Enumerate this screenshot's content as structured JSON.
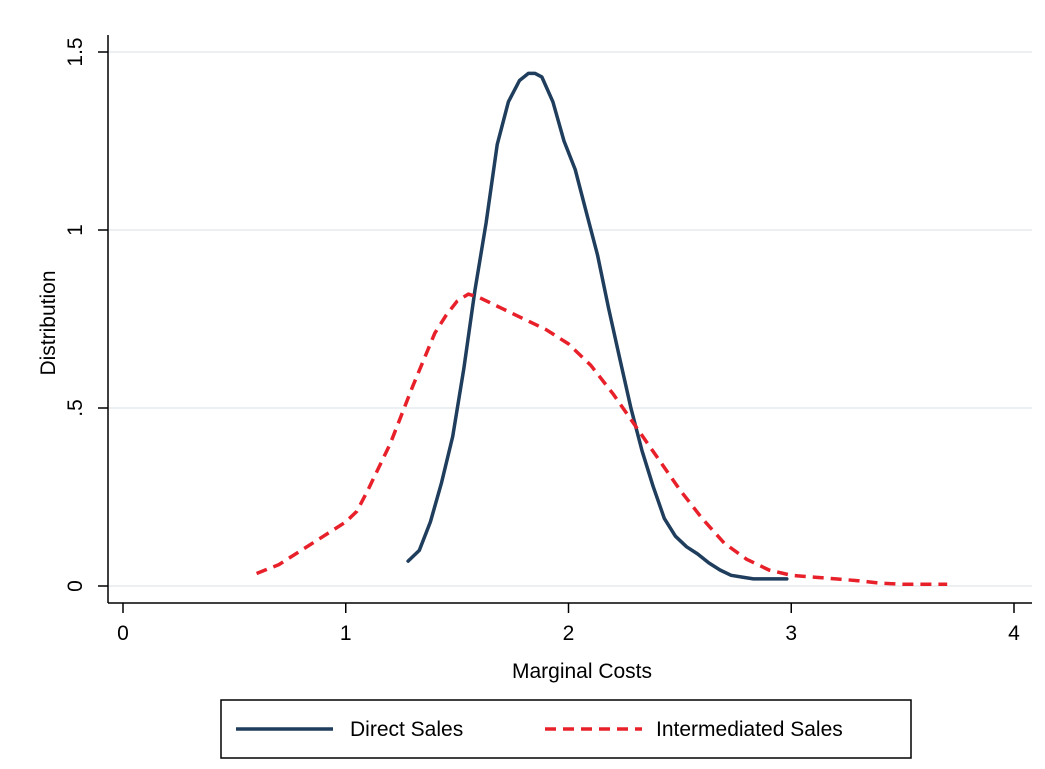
{
  "chart_data": {
    "type": "line",
    "xlabel": "Marginal Costs",
    "ylabel": "Distribution",
    "xlim": [
      0,
      4
    ],
    "ylim": [
      0,
      1.5
    ],
    "xticks": [
      0,
      1,
      2,
      3,
      4
    ],
    "xtick_labels": [
      "0",
      "1",
      "2",
      "3",
      "4"
    ],
    "yticks": [
      0,
      0.5,
      1,
      1.5
    ],
    "ytick_labels": [
      "0",
      ".5",
      "1",
      "1.5"
    ],
    "grid": "horizontal",
    "legend_position": "bottom",
    "series": [
      {
        "name": "Direct Sales",
        "color": "#1f3d5c",
        "style": "solid",
        "x": [
          1.28,
          1.33,
          1.38,
          1.43,
          1.48,
          1.53,
          1.58,
          1.63,
          1.68,
          1.73,
          1.78,
          1.82,
          1.85,
          1.88,
          1.93,
          1.98,
          2.03,
          2.08,
          2.13,
          2.18,
          2.23,
          2.28,
          2.33,
          2.38,
          2.43,
          2.48,
          2.53,
          2.58,
          2.63,
          2.68,
          2.73,
          2.78,
          2.83,
          2.88,
          2.93,
          2.98
        ],
        "y": [
          0.07,
          0.1,
          0.18,
          0.29,
          0.42,
          0.61,
          0.83,
          1.02,
          1.24,
          1.36,
          1.42,
          1.44,
          1.44,
          1.43,
          1.36,
          1.25,
          1.17,
          1.05,
          0.93,
          0.78,
          0.64,
          0.5,
          0.38,
          0.28,
          0.19,
          0.14,
          0.11,
          0.09,
          0.065,
          0.045,
          0.03,
          0.025,
          0.02,
          0.02,
          0.02,
          0.02
        ]
      },
      {
        "name": "Intermediated Sales",
        "color": "#e8202a",
        "style": "dashed",
        "x": [
          0.6,
          0.7,
          0.8,
          0.9,
          1.0,
          1.05,
          1.1,
          1.2,
          1.3,
          1.4,
          1.45,
          1.5,
          1.55,
          1.6,
          1.7,
          1.8,
          1.9,
          2.0,
          2.1,
          2.2,
          2.3,
          2.4,
          2.5,
          2.6,
          2.7,
          2.8,
          2.9,
          3.0,
          3.1,
          3.2,
          3.3,
          3.4,
          3.5,
          3.6,
          3.7
        ],
        "y": [
          0.035,
          0.06,
          0.1,
          0.14,
          0.18,
          0.21,
          0.27,
          0.4,
          0.56,
          0.71,
          0.76,
          0.8,
          0.82,
          0.81,
          0.78,
          0.75,
          0.72,
          0.68,
          0.62,
          0.54,
          0.45,
          0.36,
          0.27,
          0.19,
          0.12,
          0.075,
          0.045,
          0.03,
          0.025,
          0.02,
          0.015,
          0.008,
          0.005,
          0.005,
          0.005
        ]
      }
    ]
  }
}
